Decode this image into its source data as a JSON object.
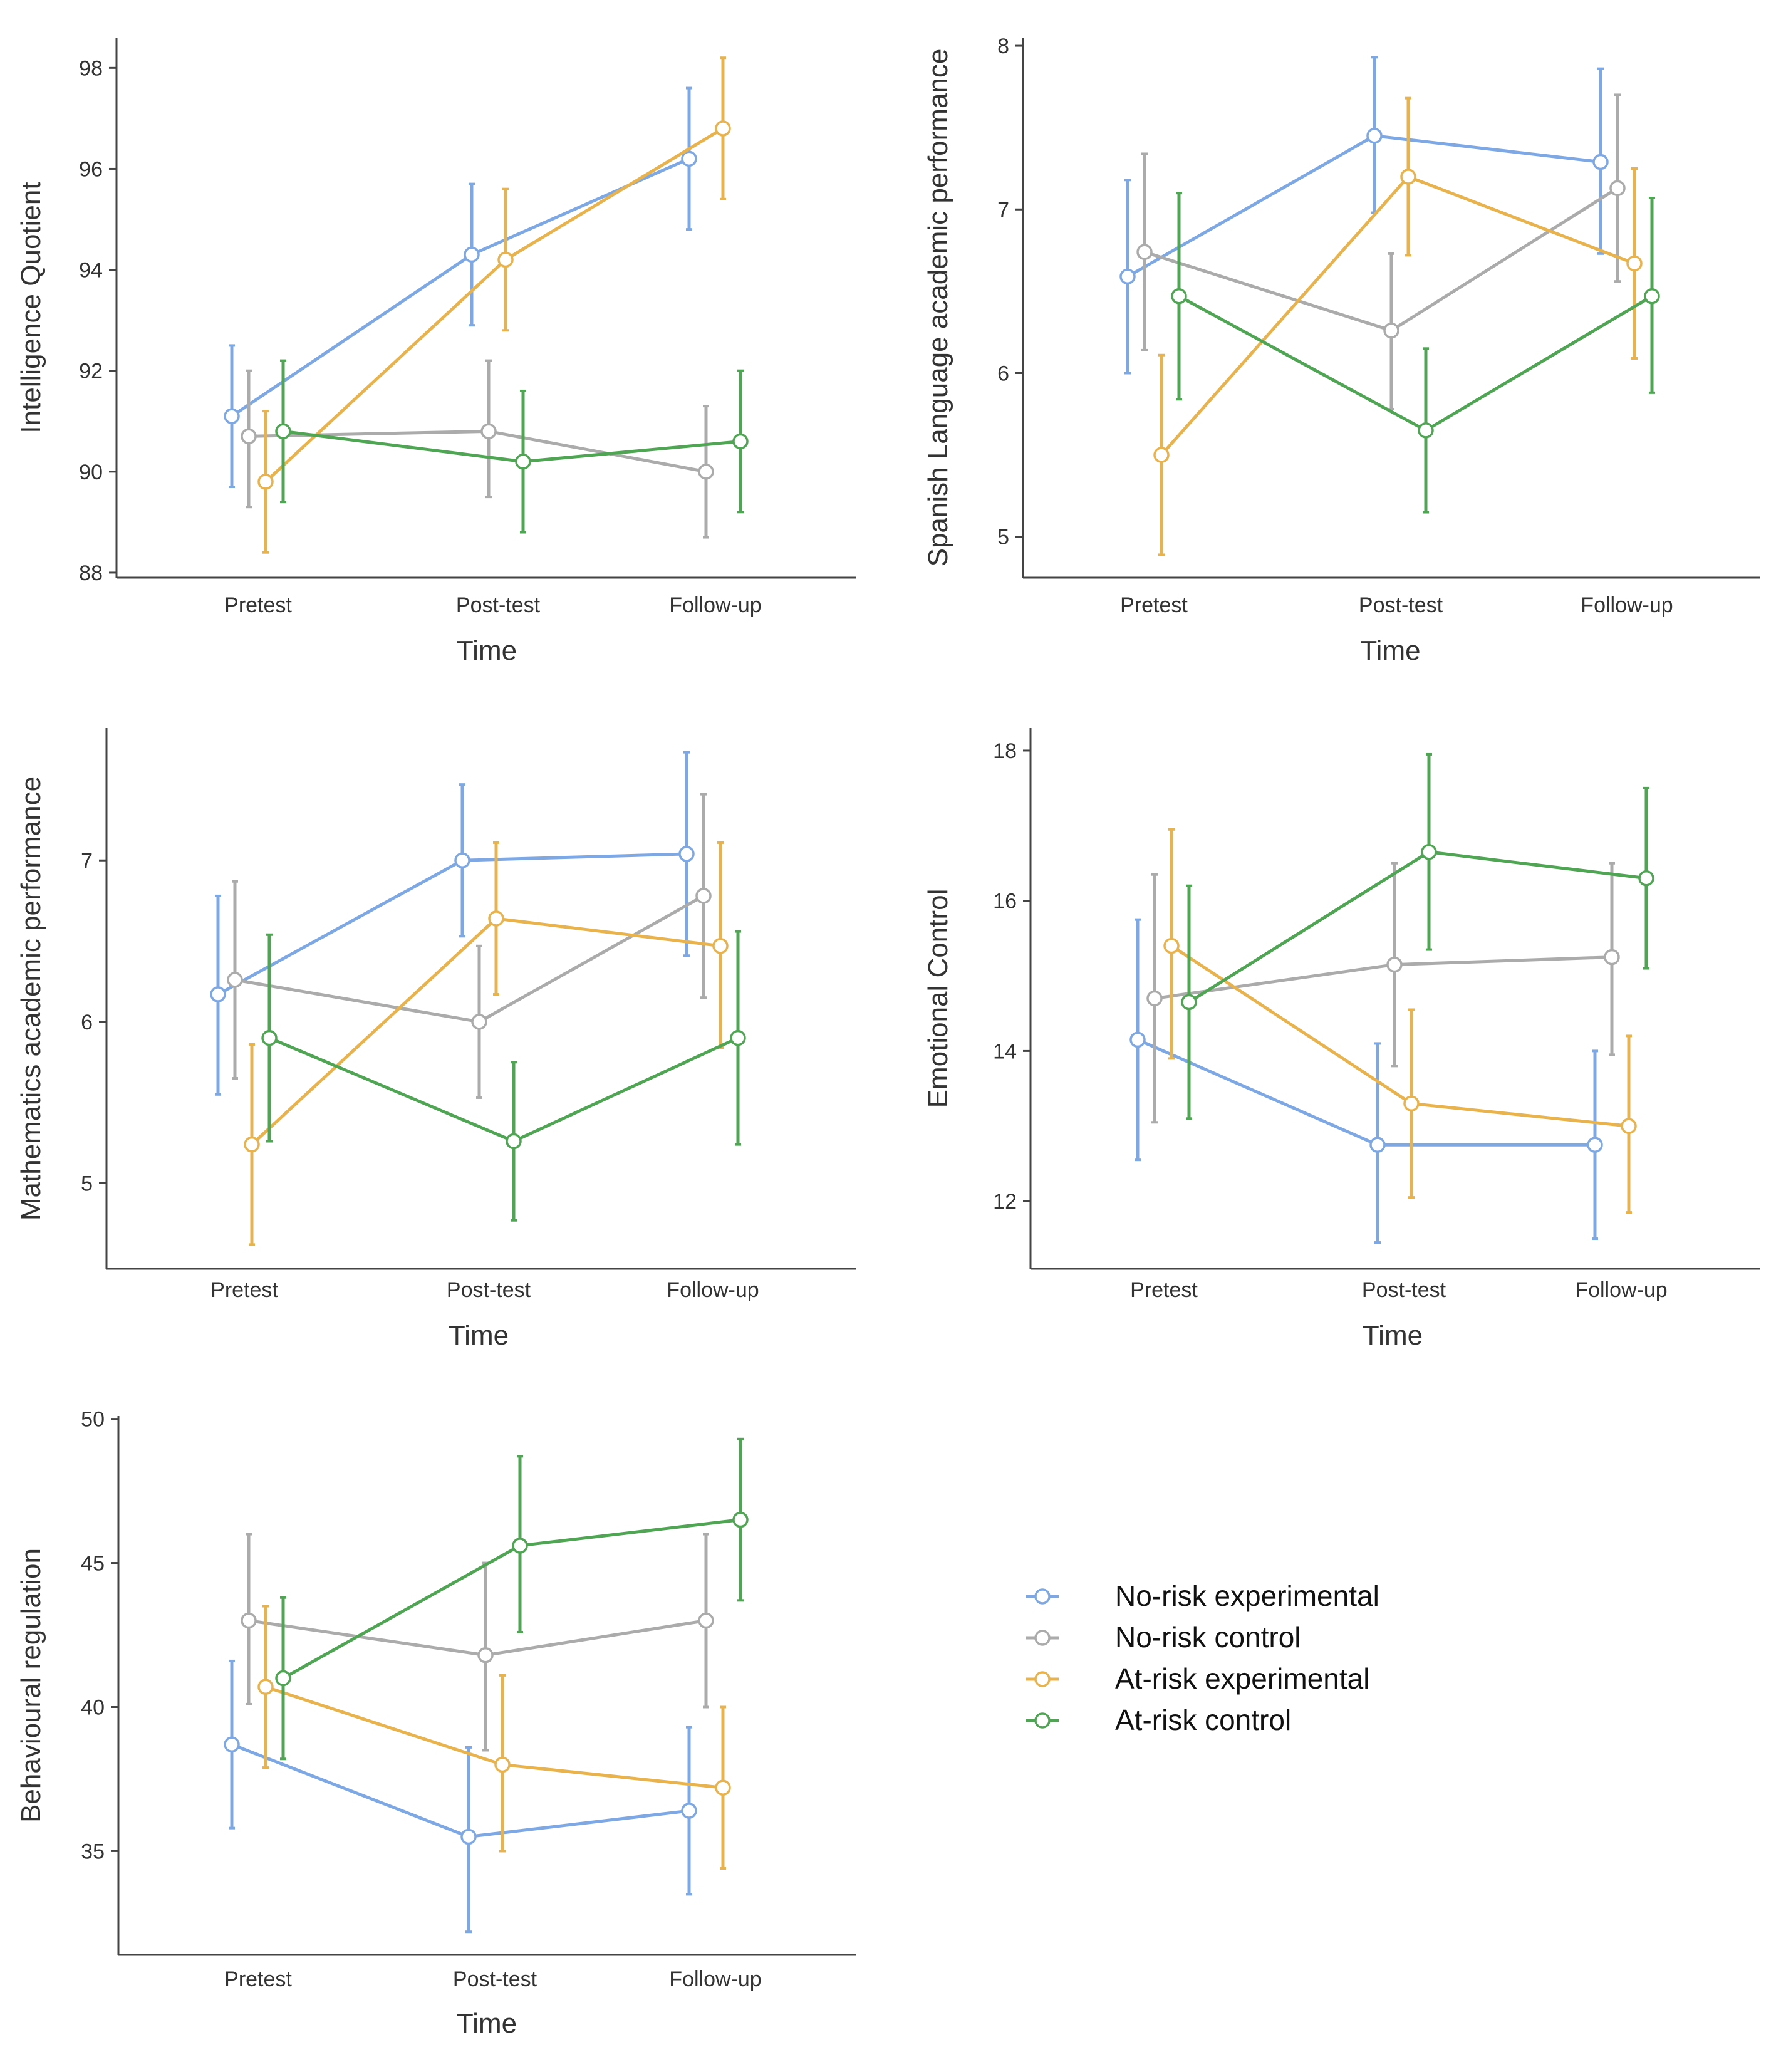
{
  "colors": {
    "No-risk experimental": "#7ea8e4",
    "No-risk control": "#ababab",
    "At-risk experimental": "#e8b24d",
    "At-risk control": "#4fa553",
    "axis": "#444444"
  },
  "legend": {
    "items": [
      "No-risk experimental",
      "No-risk control",
      "At-risk experimental",
      "At-risk control"
    ],
    "marker": "circle-line-icon"
  },
  "chart_data": [
    {
      "type": "line",
      "title": "",
      "xlabel": "Time",
      "ylabel": "Intelligence Quotient",
      "categories": [
        "Pretest",
        "Post-test",
        "Follow-up"
      ],
      "ylim": [
        87.9,
        98.6
      ],
      "yticks": [
        88,
        90,
        92,
        94,
        96,
        98
      ],
      "series": [
        {
          "name": "No-risk experimental",
          "values": [
            91.1,
            94.3,
            96.2
          ],
          "lower": [
            89.7,
            92.9,
            94.8
          ],
          "upper": [
            92.5,
            95.7,
            97.6
          ]
        },
        {
          "name": "No-risk control",
          "values": [
            90.7,
            90.8,
            90.0
          ],
          "lower": [
            89.3,
            89.5,
            88.7
          ],
          "upper": [
            92.0,
            92.2,
            91.3
          ]
        },
        {
          "name": "At-risk experimental",
          "values": [
            89.8,
            94.2,
            96.8
          ],
          "lower": [
            88.4,
            92.8,
            95.4
          ],
          "upper": [
            91.2,
            95.6,
            98.2
          ]
        },
        {
          "name": "At-risk control",
          "values": [
            90.8,
            90.2,
            90.6
          ],
          "lower": [
            89.4,
            88.8,
            89.2
          ],
          "upper": [
            92.2,
            91.6,
            92.0
          ]
        }
      ]
    },
    {
      "type": "line",
      "title": "",
      "xlabel": "Time",
      "ylabel": "Spanish Language academic performance",
      "categories": [
        "Pretest",
        "Post-test",
        "Follow-up"
      ],
      "ylim": [
        4.75,
        8.05
      ],
      "yticks": [
        5,
        6,
        7,
        8
      ],
      "series": [
        {
          "name": "No-risk experimental",
          "values": [
            6.59,
            7.45,
            7.29
          ],
          "lower": [
            6.0,
            6.98,
            6.73
          ],
          "upper": [
            7.18,
            7.93,
            7.86
          ]
        },
        {
          "name": "No-risk control",
          "values": [
            6.74,
            6.26,
            7.13
          ],
          "lower": [
            6.14,
            5.78,
            6.56
          ],
          "upper": [
            7.34,
            6.73,
            7.7
          ]
        },
        {
          "name": "At-risk experimental",
          "values": [
            5.5,
            7.2,
            6.67
          ],
          "lower": [
            4.89,
            6.72,
            6.09
          ],
          "upper": [
            6.11,
            7.68,
            7.25
          ]
        },
        {
          "name": "At-risk control",
          "values": [
            6.47,
            5.65,
            6.47
          ],
          "lower": [
            5.84,
            5.15,
            5.88
          ],
          "upper": [
            7.1,
            6.15,
            7.07
          ]
        }
      ]
    },
    {
      "type": "line",
      "title": "",
      "xlabel": "Time",
      "ylabel": "Mathematics academic performance",
      "categories": [
        "Pretest",
        "Post-test",
        "Follow-up"
      ],
      "ylim": [
        4.47,
        7.82
      ],
      "yticks": [
        5,
        6,
        7
      ],
      "series": [
        {
          "name": "No-risk experimental",
          "values": [
            6.17,
            7.0,
            7.04
          ],
          "lower": [
            5.55,
            6.53,
            6.41
          ],
          "upper": [
            6.78,
            7.47,
            7.67
          ]
        },
        {
          "name": "No-risk control",
          "values": [
            6.26,
            6.0,
            6.78
          ],
          "lower": [
            5.65,
            5.53,
            6.15
          ],
          "upper": [
            6.87,
            6.47,
            7.41
          ]
        },
        {
          "name": "At-risk experimental",
          "values": [
            5.24,
            6.64,
            6.47
          ],
          "lower": [
            4.62,
            6.17,
            5.84
          ],
          "upper": [
            5.86,
            7.11,
            7.11
          ]
        },
        {
          "name": "At-risk control",
          "values": [
            5.9,
            5.26,
            5.9
          ],
          "lower": [
            5.26,
            4.77,
            5.24
          ],
          "upper": [
            6.54,
            5.75,
            6.56
          ]
        }
      ]
    },
    {
      "type": "line",
      "title": "",
      "xlabel": "Time",
      "ylabel": "Emotional Control",
      "categories": [
        "Pretest",
        "Post-test",
        "Follow-up"
      ],
      "ylim": [
        11.1,
        18.3
      ],
      "yticks": [
        12,
        14,
        16,
        18
      ],
      "series": [
        {
          "name": "No-risk experimental",
          "values": [
            14.15,
            12.75,
            12.75
          ],
          "lower": [
            12.55,
            11.45,
            11.5
          ],
          "upper": [
            15.75,
            14.1,
            14.0
          ]
        },
        {
          "name": "No-risk control",
          "values": [
            14.7,
            15.15,
            15.25
          ],
          "lower": [
            13.05,
            13.8,
            13.95
          ],
          "upper": [
            16.35,
            16.5,
            16.5
          ]
        },
        {
          "name": "At-risk experimental",
          "values": [
            15.4,
            13.3,
            13.0
          ],
          "lower": [
            13.9,
            12.05,
            11.85
          ],
          "upper": [
            16.95,
            14.55,
            14.2
          ]
        },
        {
          "name": "At-risk control",
          "values": [
            14.65,
            16.65,
            16.3
          ],
          "lower": [
            13.1,
            15.35,
            15.1
          ],
          "upper": [
            16.2,
            17.95,
            17.5
          ]
        }
      ]
    },
    {
      "type": "line",
      "title": "",
      "xlabel": "Time",
      "ylabel": "Behavioural regulation",
      "categories": [
        "Pretest",
        "Post-test",
        "Follow-up"
      ],
      "ylim": [
        31.4,
        50.1
      ],
      "yticks": [
        35,
        40,
        45,
        50
      ],
      "series": [
        {
          "name": "No-risk experimental",
          "values": [
            38.7,
            35.5,
            36.4
          ],
          "lower": [
            35.8,
            32.2,
            33.5
          ],
          "upper": [
            41.6,
            38.6,
            39.3
          ]
        },
        {
          "name": "No-risk control",
          "values": [
            43.0,
            41.8,
            43.0
          ],
          "lower": [
            40.1,
            38.5,
            40.0
          ],
          "upper": [
            46.0,
            45.0,
            46.0
          ]
        },
        {
          "name": "At-risk experimental",
          "values": [
            40.7,
            38.0,
            37.2
          ],
          "lower": [
            37.9,
            35.0,
            34.4
          ],
          "upper": [
            43.5,
            41.1,
            40.0
          ]
        },
        {
          "name": "At-risk control",
          "values": [
            41.0,
            45.6,
            46.5
          ],
          "lower": [
            38.2,
            42.6,
            43.7
          ],
          "upper": [
            43.8,
            48.7,
            49.3
          ]
        }
      ]
    }
  ]
}
